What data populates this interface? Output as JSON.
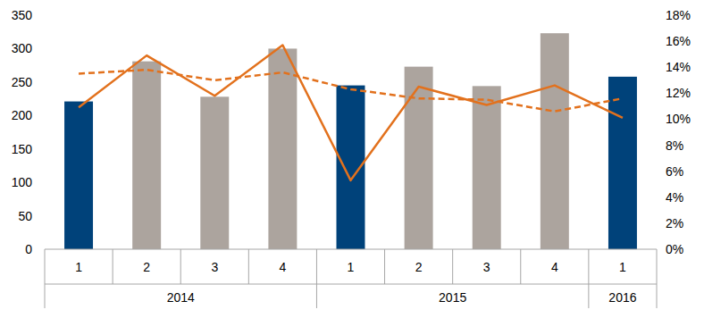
{
  "chart_data": {
    "type": "bar",
    "categories": [
      "1",
      "2",
      "3",
      "4",
      "1",
      "2",
      "3",
      "4",
      "1"
    ],
    "x_groups": [
      {
        "label": "2014",
        "count": 4
      },
      {
        "label": "2015",
        "count": 4
      },
      {
        "label": "2016",
        "count": 1
      }
    ],
    "series": [
      {
        "type": "bar",
        "values": [
          221,
          281,
          228,
          300,
          245,
          273,
          244,
          323,
          258
        ],
        "colors": [
          "#00427a",
          "#aca49e",
          "#aca49e",
          "#aca49e",
          "#00427a",
          "#aca49e",
          "#aca49e",
          "#aca49e",
          "#00427a"
        ]
      },
      {
        "type": "line",
        "axis": "y2",
        "line_style": "solid",
        "color": "#e2711d",
        "values": [
          10.9,
          14.9,
          11.8,
          15.7,
          5.3,
          12.5,
          11.1,
          12.6,
          10.1
        ]
      },
      {
        "type": "line",
        "axis": "y2",
        "line_style": "dashed",
        "color": "#e2711d",
        "values": [
          13.5,
          13.8,
          13.0,
          13.6,
          12.3,
          11.6,
          11.5,
          10.6,
          11.6
        ]
      }
    ],
    "ylim": [
      0,
      350
    ],
    "yticks": [
      0,
      50,
      100,
      150,
      200,
      250,
      300,
      350
    ],
    "y2lim": [
      0,
      18
    ],
    "y2ticks": [
      {
        "value": 0,
        "label": "0%"
      },
      {
        "value": 2,
        "label": "2%"
      },
      {
        "value": 4,
        "label": "4%"
      },
      {
        "value": 6,
        "label": "6%"
      },
      {
        "value": 8,
        "label": "8%"
      },
      {
        "value": 10,
        "label": "10%"
      },
      {
        "value": 12,
        "label": "12%"
      },
      {
        "value": 14,
        "label": "14%"
      },
      {
        "value": 16,
        "label": "16%"
      },
      {
        "value": 18,
        "label": "18%"
      }
    ],
    "grid": false
  }
}
